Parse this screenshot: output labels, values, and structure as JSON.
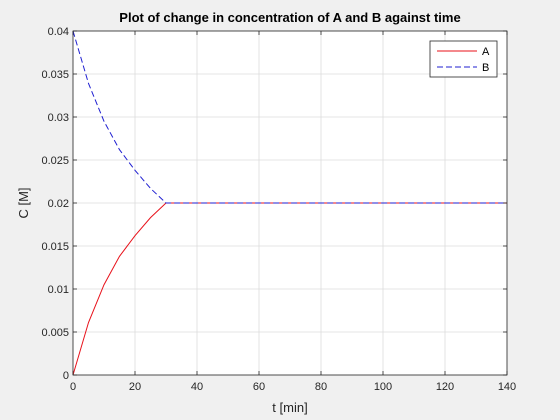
{
  "chart_data": {
    "type": "line",
    "title": "Plot of change in concentration of A and B against time",
    "xlabel": "t [min]",
    "ylabel": "C [M]",
    "xlim": [
      0,
      140
    ],
    "ylim": [
      0,
      0.04
    ],
    "xticks": [
      0,
      20,
      40,
      60,
      80,
      100,
      120,
      140
    ],
    "yticks": [
      0,
      0.005,
      0.01,
      0.015,
      0.02,
      0.025,
      0.03,
      0.035,
      0.04
    ],
    "xtick_labels": [
      "0",
      "20",
      "40",
      "60",
      "80",
      "100",
      "120",
      "140"
    ],
    "ytick_labels": [
      "0",
      "0.005",
      "0.01",
      "0.015",
      "0.02",
      "0.025",
      "0.03",
      "0.035",
      "0.04"
    ],
    "grid": true,
    "legend_position": "top-right",
    "series": [
      {
        "name": "A",
        "color": "#e8111a",
        "style": "solid",
        "x": [
          0,
          5,
          10,
          15,
          20,
          25,
          30,
          140
        ],
        "y": [
          0,
          0.0061,
          0.0105,
          0.0138,
          0.0162,
          0.0183,
          0.02,
          0.02
        ]
      },
      {
        "name": "B",
        "color": "#1f1fd1",
        "style": "dashed",
        "x": [
          0,
          5,
          10,
          15,
          20,
          25,
          30,
          140
        ],
        "y": [
          0.04,
          0.0339,
          0.0295,
          0.0262,
          0.0238,
          0.0217,
          0.02,
          0.02
        ]
      }
    ]
  }
}
